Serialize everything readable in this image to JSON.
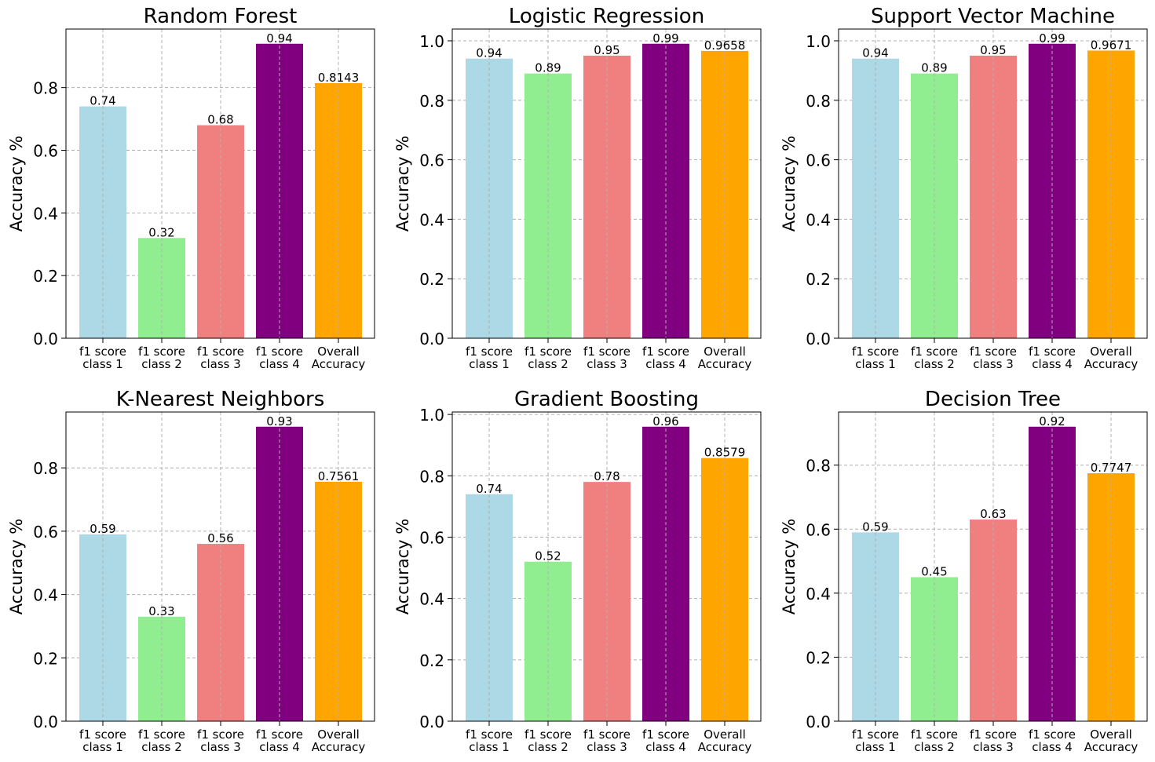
{
  "colors": {
    "f1 score class 1": "#add8e6",
    "f1 score class 2": "#90ee90",
    "f1 score class 3": "#f08080",
    "f1 score class 4": "#800080",
    "Overall Accuracy": "#ffa500",
    "grid": "#b0b0b0"
  },
  "chart_data": [
    {
      "type": "bar",
      "title": "Random Forest",
      "ylabel": "Accuracy %",
      "categories": [
        "f1 score class 1",
        "f1 score class 2",
        "f1 score class 3",
        "f1 score class 4",
        "Overall Accuracy"
      ],
      "category_lines": [
        [
          "f1 score",
          "class 1"
        ],
        [
          "f1 score",
          "class 2"
        ],
        [
          "f1 score",
          "class 3"
        ],
        [
          "f1 score",
          "class 4"
        ],
        [
          "Overall",
          "Accuracy"
        ]
      ],
      "values": [
        0.74,
        0.32,
        0.68,
        0.94,
        0.8143
      ],
      "value_labels": [
        "0.74",
        "0.32",
        "0.68",
        "0.94",
        "0.8143"
      ],
      "ylim": [
        0,
        0.987
      ],
      "yticks": [
        "0.0",
        "0.2",
        "0.4",
        "0.6",
        "0.8"
      ],
      "grid": true
    },
    {
      "type": "bar",
      "title": "Logistic Regression",
      "ylabel": "Accuracy %",
      "categories": [
        "f1 score class 1",
        "f1 score class 2",
        "f1 score class 3",
        "f1 score class 4",
        "Overall Accuracy"
      ],
      "category_lines": [
        [
          "f1 score",
          "class 1"
        ],
        [
          "f1 score",
          "class 2"
        ],
        [
          "f1 score",
          "class 3"
        ],
        [
          "f1 score",
          "class 4"
        ],
        [
          "Overall",
          "Accuracy"
        ]
      ],
      "values": [
        0.94,
        0.89,
        0.95,
        0.99,
        0.9658
      ],
      "value_labels": [
        "0.94",
        "0.89",
        "0.95",
        "0.99",
        "0.9658"
      ],
      "ylim": [
        0,
        1.0395
      ],
      "yticks": [
        "0.0",
        "0.2",
        "0.4",
        "0.6",
        "0.8",
        "1.0"
      ],
      "grid": true
    },
    {
      "type": "bar",
      "title": "Support Vector Machine",
      "ylabel": "Accuracy %",
      "categories": [
        "f1 score class 1",
        "f1 score class 2",
        "f1 score class 3",
        "f1 score class 4",
        "Overall Accuracy"
      ],
      "category_lines": [
        [
          "f1 score",
          "class 1"
        ],
        [
          "f1 score",
          "class 2"
        ],
        [
          "f1 score",
          "class 3"
        ],
        [
          "f1 score",
          "class 4"
        ],
        [
          "Overall",
          "Accuracy"
        ]
      ],
      "values": [
        0.94,
        0.89,
        0.95,
        0.99,
        0.9671
      ],
      "value_labels": [
        "0.94",
        "0.89",
        "0.95",
        "0.99",
        "0.9671"
      ],
      "ylim": [
        0,
        1.0395
      ],
      "yticks": [
        "0.0",
        "0.2",
        "0.4",
        "0.6",
        "0.8",
        "1.0"
      ],
      "grid": true
    },
    {
      "type": "bar",
      "title": "K-Nearest Neighbors",
      "ylabel": "Accuracy %",
      "categories": [
        "f1 score class 1",
        "f1 score class 2",
        "f1 score class 3",
        "f1 score class 4",
        "Overall Accuracy"
      ],
      "category_lines": [
        [
          "f1 score",
          "class 1"
        ],
        [
          "f1 score",
          "class 2"
        ],
        [
          "f1 score",
          "class 3"
        ],
        [
          "f1 score",
          "class 4"
        ],
        [
          "Overall",
          "Accuracy"
        ]
      ],
      "values": [
        0.59,
        0.33,
        0.56,
        0.93,
        0.7561
      ],
      "value_labels": [
        "0.59",
        "0.33",
        "0.56",
        "0.93",
        "0.7561"
      ],
      "ylim": [
        0,
        0.9765
      ],
      "yticks": [
        "0.0",
        "0.2",
        "0.4",
        "0.6",
        "0.8"
      ],
      "grid": true
    },
    {
      "type": "bar",
      "title": "Gradient Boosting",
      "ylabel": "Accuracy %",
      "categories": [
        "f1 score class 1",
        "f1 score class 2",
        "f1 score class 3",
        "f1 score class 4",
        "Overall Accuracy"
      ],
      "category_lines": [
        [
          "f1 score",
          "class 1"
        ],
        [
          "f1 score",
          "class 2"
        ],
        [
          "f1 score",
          "class 3"
        ],
        [
          "f1 score",
          "class 4"
        ],
        [
          "Overall",
          "Accuracy"
        ]
      ],
      "values": [
        0.74,
        0.52,
        0.78,
        0.96,
        0.8579
      ],
      "value_labels": [
        "0.74",
        "0.52",
        "0.78",
        "0.96",
        "0.8579"
      ],
      "ylim": [
        0,
        1.008
      ],
      "yticks": [
        "0.0",
        "0.2",
        "0.4",
        "0.6",
        "0.8",
        "1.0"
      ],
      "grid": true
    },
    {
      "type": "bar",
      "title": "Decision Tree",
      "ylabel": "Accuracy %",
      "categories": [
        "f1 score class 1",
        "f1 score class 2",
        "f1 score class 3",
        "f1 score class 4",
        "Overall Accuracy"
      ],
      "category_lines": [
        [
          "f1 score",
          "class 1"
        ],
        [
          "f1 score",
          "class 2"
        ],
        [
          "f1 score",
          "class 3"
        ],
        [
          "f1 score",
          "class 4"
        ],
        [
          "Overall",
          "Accuracy"
        ]
      ],
      "values": [
        0.59,
        0.45,
        0.63,
        0.92,
        0.7747
      ],
      "value_labels": [
        "0.59",
        "0.45",
        "0.63",
        "0.92",
        "0.7747"
      ],
      "ylim": [
        0,
        0.966
      ],
      "yticks": [
        "0.0",
        "0.2",
        "0.4",
        "0.6",
        "0.8"
      ],
      "grid": true
    }
  ]
}
